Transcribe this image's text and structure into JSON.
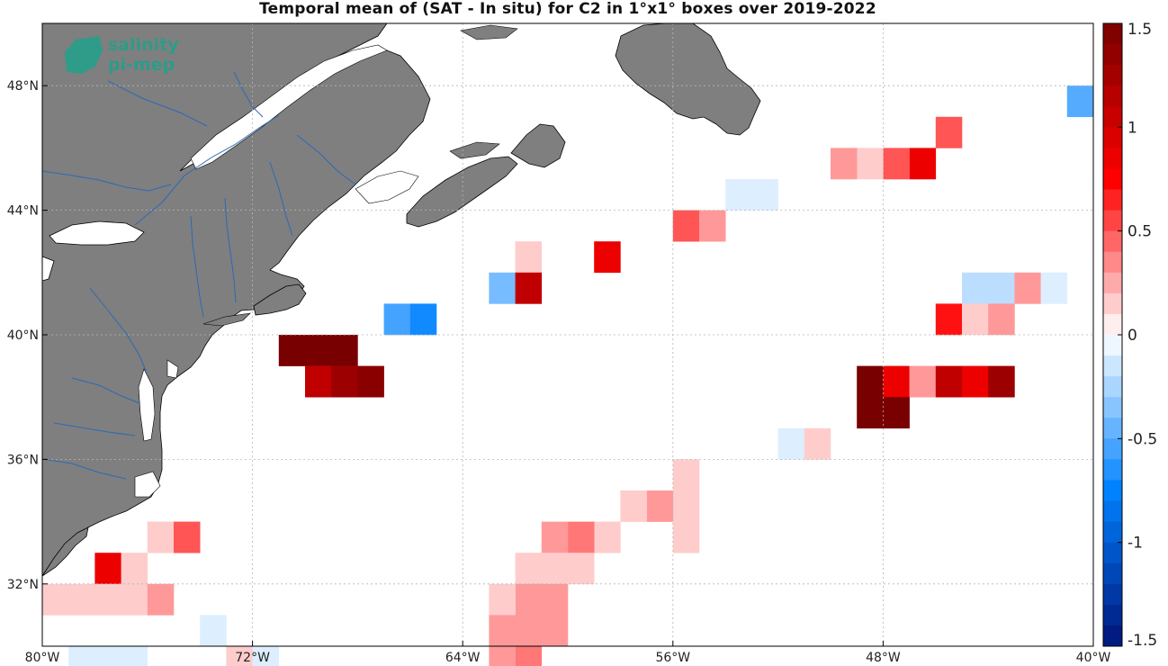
{
  "title": "Temporal mean of (SAT - In situ) for C2 in 1°x1° boxes over 2019-2022",
  "logo": {
    "line1": "salinity",
    "line2": "pi-mep",
    "color": "#13a58c"
  },
  "map": {
    "lon_range": [
      -80,
      -40
    ],
    "lat_range": [
      30,
      50
    ],
    "land_color": "#7f7f7f",
    "coast_color": "#000000",
    "river_color": "#2a6ab8",
    "grid": true,
    "x_ticks": [
      {
        "value": -80,
        "label": "80°W"
      },
      {
        "value": -72,
        "label": "72°W"
      },
      {
        "value": -64,
        "label": "64°W"
      },
      {
        "value": -56,
        "label": "56°W"
      },
      {
        "value": -48,
        "label": "48°W"
      },
      {
        "value": -40,
        "label": "40°W"
      }
    ],
    "y_ticks": [
      {
        "value": 32,
        "label": "32°N"
      },
      {
        "value": 36,
        "label": "36°N"
      },
      {
        "value": 40,
        "label": "40°N"
      },
      {
        "value": 44,
        "label": "44°N"
      },
      {
        "value": 48,
        "label": "48°N"
      }
    ]
  },
  "colorbar": {
    "range": [
      -1.5,
      1.5
    ],
    "levels": 30,
    "ticks": [
      {
        "value": 1.5,
        "label": "1.5"
      },
      {
        "value": 1,
        "label": "1"
      },
      {
        "value": 0.5,
        "label": "0.5"
      },
      {
        "value": 0,
        "label": "0"
      },
      {
        "value": -0.5,
        "label": "-0.5"
      },
      {
        "value": -1,
        "label": "-1"
      },
      {
        "value": -1.5,
        "label": "-1.5"
      }
    ]
  },
  "chart_data": {
    "type": "heatmap",
    "title": "Temporal mean of (SAT - In situ) for C2 in 1°x1° boxes over 2019-2022",
    "xlabel": "",
    "ylabel": "",
    "xlim": [
      -80,
      -40
    ],
    "ylim": [
      30,
      50
    ],
    "cell_size_deg": 1,
    "cells": [
      {
        "lon": -41,
        "lat": 47,
        "value": -0.5
      },
      {
        "lon": -46,
        "lat": 46,
        "value": 0.5
      },
      {
        "lon": -47,
        "lat": 45,
        "value": 0.85
      },
      {
        "lon": -48,
        "lat": 45,
        "value": 0.5
      },
      {
        "lon": -49,
        "lat": 45,
        "value": 0.15
      },
      {
        "lon": -50,
        "lat": 45,
        "value": 0.3
      },
      {
        "lon": -53,
        "lat": 44,
        "value": -0.1
      },
      {
        "lon": -54,
        "lat": 44,
        "value": -0.1
      },
      {
        "lon": -56,
        "lat": 43,
        "value": 0.5
      },
      {
        "lon": -55,
        "lat": 43,
        "value": 0.3
      },
      {
        "lon": -62,
        "lat": 42,
        "value": 0.15
      },
      {
        "lon": -59,
        "lat": 42,
        "value": 0.85
      },
      {
        "lon": -63,
        "lat": 41,
        "value": -0.4
      },
      {
        "lon": -62,
        "lat": 41,
        "value": 1.1
      },
      {
        "lon": -45,
        "lat": 41,
        "value": -0.2
      },
      {
        "lon": -44,
        "lat": 41,
        "value": -0.2
      },
      {
        "lon": -43,
        "lat": 41,
        "value": 0.3
      },
      {
        "lon": -42,
        "lat": 41,
        "value": -0.1
      },
      {
        "lon": -67,
        "lat": 40,
        "value": -0.55
      },
      {
        "lon": -66,
        "lat": 40,
        "value": -0.7
      },
      {
        "lon": -46,
        "lat": 40,
        "value": 0.7
      },
      {
        "lon": -45,
        "lat": 40,
        "value": 0.15
      },
      {
        "lon": -44,
        "lat": 40,
        "value": 0.3
      },
      {
        "lon": -71,
        "lat": 39,
        "value": 1.5
      },
      {
        "lon": -70,
        "lat": 39,
        "value": 1.5
      },
      {
        "lon": -69,
        "lat": 39,
        "value": 1.5
      },
      {
        "lon": -70,
        "lat": 38,
        "value": 1.1
      },
      {
        "lon": -69,
        "lat": 38,
        "value": 1.3
      },
      {
        "lon": -68,
        "lat": 38,
        "value": 1.4
      },
      {
        "lon": -49,
        "lat": 38,
        "value": 1.5
      },
      {
        "lon": -48,
        "lat": 38,
        "value": 0.85
      },
      {
        "lon": -47,
        "lat": 38,
        "value": 0.3
      },
      {
        "lon": -46,
        "lat": 38,
        "value": 1.1
      },
      {
        "lon": -45,
        "lat": 38,
        "value": 0.85
      },
      {
        "lon": -44,
        "lat": 38,
        "value": 1.3
      },
      {
        "lon": -49,
        "lat": 37,
        "value": 1.5
      },
      {
        "lon": -48,
        "lat": 37,
        "value": 1.5
      },
      {
        "lon": -52,
        "lat": 36,
        "value": -0.1
      },
      {
        "lon": -51,
        "lat": 36,
        "value": 0.15
      },
      {
        "lon": -56,
        "lat": 35,
        "value": 0.15
      },
      {
        "lon": -56,
        "lat": 34,
        "value": 0.15
      },
      {
        "lon": -57,
        "lat": 34,
        "value": 0.3
      },
      {
        "lon": -58,
        "lat": 34,
        "value": 0.15
      },
      {
        "lon": -56,
        "lat": 33,
        "value": 0.15
      },
      {
        "lon": -59,
        "lat": 33,
        "value": 0.15
      },
      {
        "lon": -60,
        "lat": 33,
        "value": 0.4
      },
      {
        "lon": -61,
        "lat": 33,
        "value": 0.3
      },
      {
        "lon": -60,
        "lat": 32,
        "value": 0.15
      },
      {
        "lon": -61,
        "lat": 32,
        "value": 0.15
      },
      {
        "lon": -62,
        "lat": 32,
        "value": 0.15
      },
      {
        "lon": -61,
        "lat": 31,
        "value": 0.3
      },
      {
        "lon": -62,
        "lat": 31,
        "value": 0.3
      },
      {
        "lon": -63,
        "lat": 31,
        "value": 0.15
      },
      {
        "lon": -62,
        "lat": 30,
        "value": 0.3
      },
      {
        "lon": -63,
        "lat": 30,
        "value": 0.3
      },
      {
        "lon": -61,
        "lat": 30,
        "value": 0.3
      },
      {
        "lon": -62,
        "lat": 29,
        "value": 0.4
      },
      {
        "lon": -63,
        "lat": 29,
        "value": 0.3
      },
      {
        "lon": -76,
        "lat": 33,
        "value": 0.15
      },
      {
        "lon": -75,
        "lat": 33,
        "value": 0.5
      },
      {
        "lon": -78,
        "lat": 32,
        "value": 0.85
      },
      {
        "lon": -77,
        "lat": 32,
        "value": 0.15
      },
      {
        "lon": -80,
        "lat": 31,
        "value": 0.15
      },
      {
        "lon": -79,
        "lat": 31,
        "value": 0.15
      },
      {
        "lon": -78,
        "lat": 31,
        "value": 0.15
      },
      {
        "lon": -77,
        "lat": 31,
        "value": 0.15
      },
      {
        "lon": -76,
        "lat": 31,
        "value": 0.3
      },
      {
        "lon": -74,
        "lat": 30,
        "value": -0.1
      },
      {
        "lon": -79,
        "lat": 29,
        "value": -0.1
      },
      {
        "lon": -78,
        "lat": 29,
        "value": -0.1
      },
      {
        "lon": -77,
        "lat": 29,
        "value": -0.1
      },
      {
        "lon": -73,
        "lat": 29,
        "value": 0.15
      },
      {
        "lon": -72,
        "lat": 29,
        "value": -0.1
      }
    ]
  }
}
